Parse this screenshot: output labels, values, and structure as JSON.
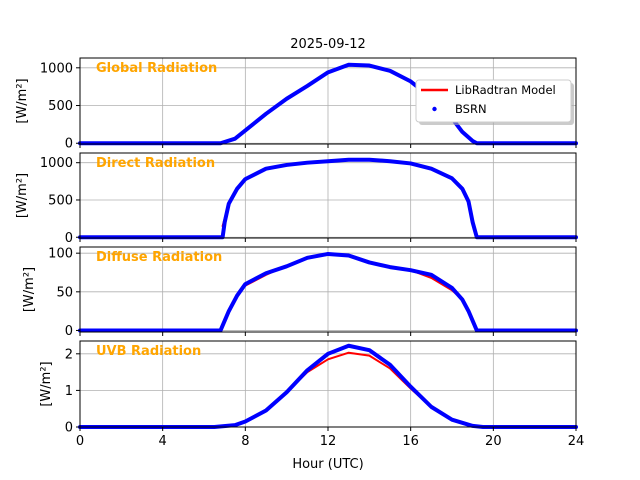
{
  "figure": {
    "title": "2025-09-12",
    "xlabel": "Hour (UTC)",
    "x_ticks": [
      0,
      4,
      8,
      12,
      16,
      20,
      24
    ],
    "x_tick_labels": [
      "0",
      "4",
      "8",
      "12",
      "16",
      "20",
      "24"
    ]
  },
  "legend": {
    "items": [
      {
        "label": "LibRadtran Model",
        "color": "#FF0000",
        "kind": "line"
      },
      {
        "label": "BSRN",
        "color": "#0000FF",
        "kind": "marker"
      }
    ]
  },
  "colors": {
    "model": "#FF0000",
    "bsrn": "#0000FF",
    "panel_title": "#FFA500",
    "grid": "#B0B0B0"
  },
  "chart_data": [
    {
      "type": "line",
      "title": "Global Radiation",
      "ylabel": "[W/m²]",
      "xlim": [
        0,
        24
      ],
      "ylim": [
        -10,
        1130
      ],
      "yticks": [
        0,
        500,
        1000
      ],
      "ytick_labels": [
        "0",
        "500",
        "1000"
      ],
      "grid": true,
      "legend": "top-right",
      "series": [
        {
          "name": "LibRadtran Model",
          "x": [
            6.8,
            7.5,
            8,
            9,
            10,
            11,
            12,
            13,
            14,
            15,
            16,
            17,
            18,
            18.5,
            19,
            19.2
          ],
          "y": [
            0,
            60,
            170,
            390,
            590,
            760,
            940,
            1040,
            1030,
            960,
            820,
            600,
            330,
            150,
            30,
            0
          ]
        },
        {
          "name": "BSRN",
          "x": [
            0,
            6.8,
            7.5,
            8,
            9,
            10,
            11,
            12,
            13,
            14,
            15,
            16,
            17,
            18,
            18.5,
            19,
            19.2,
            24
          ],
          "y": [
            0,
            0,
            60,
            170,
            390,
            590,
            760,
            940,
            1040,
            1030,
            960,
            820,
            600,
            330,
            150,
            30,
            0,
            0
          ]
        }
      ]
    },
    {
      "type": "line",
      "title": "Direct Radiation",
      "ylabel": "[W/m²]",
      "xlim": [
        0,
        24
      ],
      "ylim": [
        -10,
        1130
      ],
      "yticks": [
        0,
        500,
        1000
      ],
      "ytick_labels": [
        "0",
        "500",
        "1000"
      ],
      "grid": true,
      "series": [
        {
          "name": "LibRadtran Model",
          "x": [
            6.9,
            7.2,
            7.6,
            8,
            9,
            10,
            11,
            12,
            13,
            14,
            15,
            16,
            17,
            18,
            18.5,
            18.8,
            19
          ],
          "y": [
            150,
            450,
            650,
            780,
            920,
            970,
            1000,
            1020,
            1040,
            1040,
            1020,
            990,
            920,
            790,
            650,
            480,
            220
          ]
        },
        {
          "name": "BSRN",
          "x": [
            0,
            6.9,
            7.0,
            7.2,
            7.6,
            8,
            9,
            10,
            11,
            12,
            13,
            14,
            15,
            16,
            17,
            18,
            18.5,
            18.8,
            19,
            19.2,
            24
          ],
          "y": [
            0,
            0,
            200,
            450,
            650,
            780,
            920,
            970,
            1000,
            1020,
            1040,
            1040,
            1020,
            990,
            920,
            790,
            650,
            480,
            200,
            0,
            0
          ]
        }
      ]
    },
    {
      "type": "line",
      "title": "Diffuse Radiation",
      "ylabel": "[W/m²]",
      "xlim": [
        0,
        24
      ],
      "ylim": [
        -2,
        108
      ],
      "yticks": [
        0,
        50,
        100
      ],
      "ytick_labels": [
        "0",
        "50",
        "100"
      ],
      "grid": true,
      "series": [
        {
          "name": "LibRadtran Model",
          "x": [
            6.9,
            7.2,
            7.6,
            8,
            9,
            10,
            11,
            12,
            13,
            14,
            15,
            16,
            17,
            18,
            18.5,
            18.8,
            19.1
          ],
          "y": [
            5,
            25,
            45,
            58,
            72,
            84,
            94,
            98,
            97,
            88,
            82,
            78,
            68,
            52,
            40,
            25,
            5
          ]
        },
        {
          "name": "BSRN",
          "x": [
            0,
            6.8,
            7.2,
            7.6,
            8,
            9,
            10,
            11,
            12,
            13,
            14,
            15,
            16,
            17,
            18,
            18.5,
            18.8,
            19.2,
            24
          ],
          "y": [
            0,
            0,
            25,
            45,
            60,
            74,
            83,
            94,
            99,
            97,
            88,
            82,
            78,
            72,
            55,
            40,
            25,
            0,
            0
          ]
        }
      ]
    },
    {
      "type": "line",
      "title": "UVB Radiation",
      "ylabel": "[W/m²]",
      "xlim": [
        0,
        24
      ],
      "ylim": [
        0,
        2.35
      ],
      "yticks": [
        0,
        1,
        2
      ],
      "ytick_labels": [
        "0",
        "1",
        "2"
      ],
      "grid": true,
      "series": [
        {
          "name": "LibRadtran Model",
          "x": [
            6.5,
            7.5,
            8,
            9,
            10,
            11,
            12,
            13,
            14,
            15,
            16,
            17,
            18,
            19,
            19.5
          ],
          "y": [
            0,
            0.05,
            0.15,
            0.45,
            0.95,
            1.5,
            1.85,
            2.03,
            1.95,
            1.6,
            1.05,
            0.55,
            0.2,
            0.03,
            0
          ]
        },
        {
          "name": "BSRN",
          "x": [
            0,
            6.5,
            7.5,
            8,
            9,
            10,
            11,
            12,
            13,
            14,
            15,
            16,
            17,
            18,
            19,
            19.5,
            24
          ],
          "y": [
            0,
            0,
            0.05,
            0.15,
            0.45,
            0.95,
            1.55,
            2.0,
            2.22,
            2.1,
            1.7,
            1.1,
            0.55,
            0.2,
            0.03,
            0,
            0
          ]
        }
      ]
    }
  ]
}
